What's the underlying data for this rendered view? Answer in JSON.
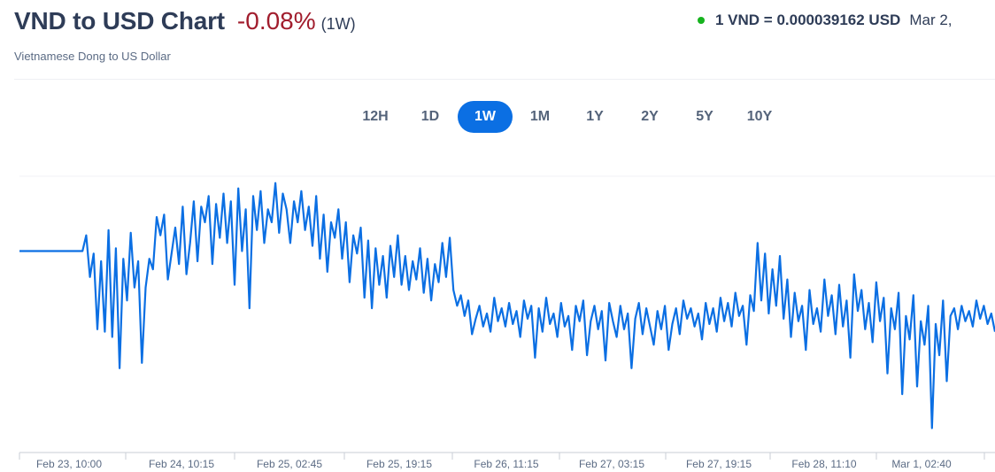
{
  "header": {
    "title": "VND to USD Chart",
    "change": "-0.08%",
    "period": "(1W)",
    "subtitle": "Vietnamese Dong to US Dollar",
    "rate_value": "1 VND = 0.000039162 USD",
    "rate_date": "Mar 2,"
  },
  "colors": {
    "line": "#0b6fe3",
    "negative": "#a11d2d",
    "live_dot": "#16b31e",
    "active_tab": "#0b6fe3"
  },
  "range_tabs": [
    {
      "label": "12H",
      "active": false
    },
    {
      "label": "1D",
      "active": false
    },
    {
      "label": "1W",
      "active": true
    },
    {
      "label": "1M",
      "active": false
    },
    {
      "label": "1Y",
      "active": false
    },
    {
      "label": "2Y",
      "active": false
    },
    {
      "label": "5Y",
      "active": false
    },
    {
      "label": "10Y",
      "active": false
    }
  ],
  "chart_data": {
    "type": "line",
    "title": "",
    "xlabel": "",
    "ylabel": "",
    "grid": false,
    "x_ticks": [
      "Feb 23, 10:00",
      "Feb 24, 10:15",
      "Feb 25, 02:45",
      "Feb 25, 19:15",
      "Feb 26, 11:15",
      "Feb 27, 03:15",
      "Feb 27, 19:15",
      "Feb 28, 11:10",
      "Mar 1, 02:40"
    ],
    "ylim": [
      0,
      100
    ],
    "series": [
      {
        "values": [
          72.6,
          72.6,
          72.6,
          72.6,
          72.6,
          72.6,
          72.6,
          72.6,
          72.6,
          72.6,
          72.6,
          72.6,
          72.6,
          72.6,
          72.6,
          72.6,
          72.6,
          72.6,
          78.3,
          63.2,
          71.7,
          44.3,
          68.9,
          43.4,
          80.2,
          41.5,
          73.6,
          30.2,
          69.8,
          54.7,
          79.2,
          59.4,
          68.9,
          32.1,
          59.4,
          69.8,
          66.0,
          84.9,
          78.3,
          85.8,
          62.3,
          71.7,
          81.1,
          67.9,
          88.7,
          64.2,
          75.5,
          90.6,
          68.9,
          88.7,
          83.0,
          92.5,
          67.9,
          89.6,
          77.4,
          93.4,
          75.5,
          90.6,
          60.4,
          95.3,
          72.6,
          87.7,
          51.9,
          92.5,
          80.2,
          94.3,
          75.5,
          87.7,
          83.0,
          97.2,
          79.2,
          93.4,
          87.7,
          75.5,
          90.6,
          83.0,
          94.3,
          80.2,
          88.7,
          74.5,
          92.5,
          69.8,
          85.8,
          65.1,
          83.0,
          77.4,
          87.7,
          69.8,
          83.0,
          61.3,
          78.3,
          71.7,
          81.1,
          55.7,
          76.4,
          51.9,
          73.6,
          60.4,
          70.8,
          55.7,
          74.5,
          63.2,
          78.3,
          60.4,
          70.8,
          58.5,
          68.9,
          62.3,
          73.6,
          57.5,
          69.8,
          54.7,
          67.9,
          61.3,
          75.5,
          63.2,
          77.4,
          58.5,
          52.8,
          56.6,
          49.1,
          54.7,
          42.5,
          48.1,
          52.8,
          45.3,
          50.0,
          43.4,
          55.7,
          47.2,
          51.9,
          45.3,
          53.8,
          46.2,
          50.9,
          41.5,
          54.7,
          48.1,
          52.8,
          34.0,
          51.9,
          43.4,
          55.7,
          46.2,
          50.0,
          41.5,
          53.8,
          45.3,
          49.1,
          36.8,
          52.8,
          47.2,
          54.7,
          34.9,
          47.2,
          52.8,
          44.3,
          50.9,
          33.0,
          53.8,
          47.2,
          41.5,
          52.8,
          44.3,
          50.0,
          30.2,
          48.1,
          53.8,
          42.5,
          51.9,
          45.3,
          38.7,
          50.9,
          44.3,
          52.8,
          36.8,
          46.2,
          51.9,
          42.5,
          54.7,
          48.1,
          51.9,
          45.3,
          50.0,
          40.6,
          53.8,
          46.2,
          51.9,
          43.4,
          55.7,
          47.2,
          53.8,
          45.3,
          57.5,
          49.1,
          52.8,
          38.7,
          56.6,
          50.9,
          75.5,
          54.7,
          71.7,
          50.0,
          66.0,
          52.8,
          70.8,
          48.1,
          62.3,
          41.5,
          57.5,
          47.2,
          52.8,
          36.8,
          58.5,
          46.2,
          51.9,
          43.4,
          62.3,
          49.1,
          56.6,
          42.5,
          60.4,
          45.3,
          54.7,
          34.0,
          64.2,
          50.9,
          58.5,
          44.3,
          53.8,
          39.6,
          61.3,
          47.2,
          55.7,
          28.3,
          51.9,
          44.3,
          57.5,
          20.8,
          49.1,
          40.6,
          56.6,
          23.6,
          47.2,
          38.7,
          52.8,
          8.5,
          46.2,
          34.9,
          54.7,
          25.5,
          49.1,
          51.9,
          44.3,
          52.8,
          47.2,
          50.9,
          45.3,
          54.7,
          48.1,
          52.8,
          46.2,
          50.0,
          43.4
        ]
      }
    ]
  }
}
